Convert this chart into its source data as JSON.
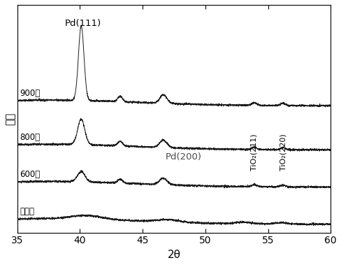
{
  "x_min": 35,
  "x_max": 60,
  "xlabel": "2θ",
  "ylabel": "强度",
  "bg_color": "#ffffff",
  "line_color": "#1a1a1a",
  "peaks": {
    "Pd111": 40.1,
    "Pd200": 46.65,
    "TiO2_211": 53.9,
    "TiO2_220": 56.2
  },
  "peak_labels": {
    "Pd111": "Pd(111)",
    "Pd200": "Pd(200)",
    "TiO2_211": "TiO₂(211)",
    "TiO2_220": "TiO₂(220)"
  },
  "curve_labels": [
    "900度",
    "800度",
    "600度",
    "未退火"
  ],
  "offsets": [
    2.6,
    1.65,
    0.85,
    0.05
  ],
  "noise_seed": 42,
  "tick_positions": [
    35,
    40,
    45,
    50,
    55,
    60
  ]
}
